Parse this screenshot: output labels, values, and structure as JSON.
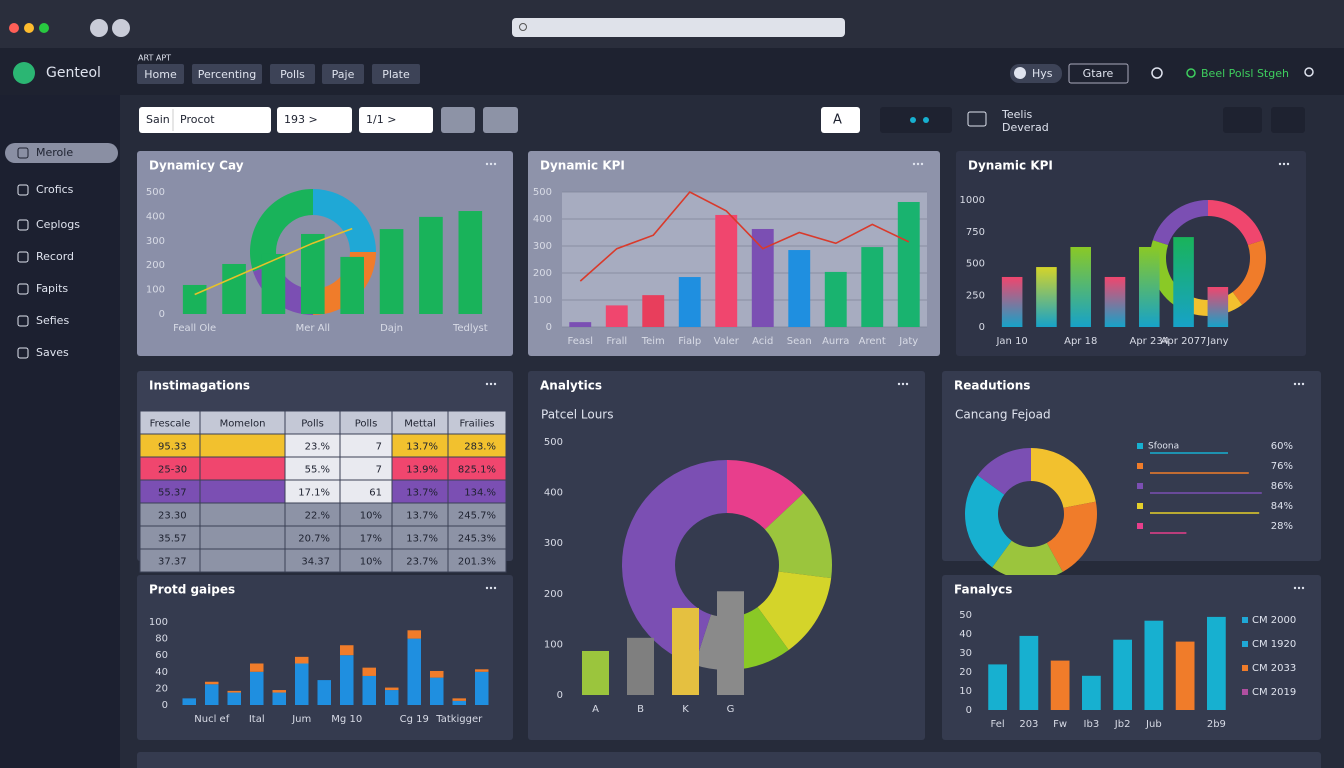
{
  "header": {
    "brand": "Genteol",
    "tag": "ART APT",
    "nav": [
      "Home",
      "Percenting",
      "Polls",
      "Paje",
      "Plate"
    ],
    "toggle": "Hys",
    "button": "Gtare",
    "status": "Beel Polsl Stgeh"
  },
  "sidebar": {
    "items": [
      "Merole",
      "Crofics",
      "Ceplogs",
      "Record",
      "Fapits",
      "Sefies",
      "Saves"
    ],
    "active": 0
  },
  "toolbar": {
    "search_label": "Sain",
    "search_value": "Procot",
    "select1": "193 >",
    "select2": "1/1 >",
    "font_button": "A",
    "details": [
      "Teelis",
      "Deverad"
    ]
  },
  "panels": [
    {
      "title": "Dynamicy Cay",
      "background": "#8a8fa8",
      "chart": {
        "type": "bar",
        "ylim": [
          0,
          500
        ],
        "yticks": [
          0,
          100,
          200,
          300,
          400,
          500
        ],
        "grid": false,
        "categories": [
          "Feall Ole",
          null,
          null,
          "Mer All",
          null,
          "Dajn",
          null,
          "Tedlyst"
        ],
        "series": [
          {
            "color": "#19b35a",
            "values": [
              119,
              205,
              246,
              328,
              234,
              348,
              398,
              422
            ]
          }
        ],
        "line": {
          "color": "#e6c229",
          "values": [
            80,
            150,
            220,
            290,
            350,
            null,
            null,
            null
          ]
        },
        "inset": {
          "values": [
            25,
            25,
            20,
            30
          ],
          "colors": [
            "#1fa8d6",
            "#f07c2a",
            "#7b4fb3",
            "#19b35a"
          ]
        }
      }
    },
    {
      "title": "Dynamic KPI",
      "background": "#8e93aa",
      "chart": {
        "type": "bar",
        "ylim": [
          0,
          500
        ],
        "yticks": [
          0,
          100,
          200,
          300,
          400,
          500
        ],
        "grid": true,
        "plot_background": "#a7acc0",
        "categories": [
          "Feasl",
          "Frall",
          "Teim",
          "Fialp",
          "Valer",
          "Acid",
          "Sean",
          "Aurra",
          "Arent",
          "Jaty"
        ],
        "series": [
          {
            "colors": [
              "#7b4fb3",
              "#f0466e",
              "#e83e5c",
              "#1f8fe0",
              "#f0466e",
              "#7b4fb3",
              "#1f8fe0",
              "#19b36f",
              "#19b36f",
              "#19b36f"
            ],
            "values": [
              18,
              80,
              118,
              185,
              415,
              363,
              285,
              204,
              296,
              463
            ]
          }
        ],
        "line": {
          "color": "#d93a2b",
          "values": [
            170,
            290,
            340,
            500,
            430,
            290,
            350,
            310,
            380,
            315
          ]
        }
      }
    },
    {
      "title": "Dynamic KPI",
      "background": "#2f3447",
      "chart": {
        "type": "bar",
        "ylim": [
          0,
          1000
        ],
        "yticks": [
          0,
          250,
          500,
          750,
          1000
        ],
        "grid": false,
        "gradient_to": "#17a2c8",
        "categories": [
          "Jan 10",
          null,
          "Apr 18",
          null,
          "Apr 234",
          "Apr 2077",
          "Jany"
        ],
        "series": [
          {
            "colors": [
              "#f0466e",
              "#d4d42a",
              "#8ac926",
              "#f0466e",
              "#8ac926",
              "#19b35a",
              "#f0466e"
            ],
            "values": [
              394,
              472,
              630,
              394,
              630,
              708,
              315
            ]
          }
        ],
        "inset": {
          "values": [
            20,
            20,
            20,
            20,
            20
          ],
          "colors": [
            "#f0466e",
            "#f07c2a",
            "#f2c12e",
            "#8ac926",
            "#7b4fb3"
          ]
        }
      }
    },
    {
      "title": "Instimagations",
      "background": "#3a4055",
      "chart": {
        "type": "table",
        "header": [
          "Frescale",
          "Momelon",
          "Polls",
          "Polls",
          "Mettal",
          "Frailies"
        ],
        "rows": [
          [
            "95.33",
            null,
            "23.%",
            "7",
            "13.7%",
            "283.%"
          ],
          [
            "25-30",
            null,
            "55.%",
            "7",
            "13.9%",
            "825.1%"
          ],
          [
            "55.37",
            null,
            "17.1%",
            "61",
            "13.7%",
            "134.%"
          ],
          [
            "23.30",
            null,
            "22.%",
            "10%",
            "13.7%",
            "245.7%"
          ],
          [
            "35.57",
            null,
            "20.7%",
            "17%",
            "13.7%",
            "245.3%"
          ],
          [
            "37.37",
            null,
            "34.37",
            "10%",
            "23.7%",
            "201.3%"
          ]
        ],
        "row_colors": [
          "#f2c12e",
          "#f0466e",
          "#7b4fb3",
          "#8d93a6",
          "#8d93a6",
          "#8d93a6"
        ]
      }
    },
    {
      "title": "Analytics",
      "subtitle": "Patcel Lours",
      "background": "#353b4f",
      "chart": {
        "type": "bar",
        "ylim": [
          0,
          500
        ],
        "yticks": [
          0,
          100,
          200,
          300,
          400,
          500
        ],
        "grid": false,
        "categories": [
          "A",
          "B",
          "K",
          "G"
        ],
        "series": [
          {
            "colors": [
              "#9bc53d",
              "#7f7f7f",
              "#e5c040",
              "#8a8a8a"
            ],
            "values": [
              87,
              113,
              172,
              205
            ]
          }
        ],
        "inset": {
          "values": [
            13,
            14,
            13,
            9,
            6,
            45
          ],
          "colors": [
            "#e83e8c",
            "#9bc53d",
            "#d4d42a",
            "#8ac926",
            "#8a8a8a",
            "#7b4fb3"
          ]
        }
      }
    },
    {
      "title": "Readutions",
      "subtitle": "Cancang Fejoad",
      "background": "#353b4f",
      "chart": {
        "type": "donut",
        "values": [
          22,
          20,
          18,
          25,
          15
        ],
        "colors": [
          "#f2c12e",
          "#f07c2a",
          "#9bc53d",
          "#17b0d0",
          "#7b4fb3"
        ],
        "legend": {
          "names": [
            "Sfoona",
            null,
            null,
            null,
            null
          ],
          "values": [
            60,
            76,
            86,
            84,
            28
          ],
          "value_labels": [
            "60%",
            "76%",
            "86%",
            "84%",
            "28%"
          ],
          "colors": [
            "#17b0d0",
            "#f07c2a",
            "#7b4fb3",
            "#e5d02a",
            "#e83e8c"
          ]
        }
      }
    },
    {
      "title": "Protd gaipes",
      "background": "#353b4f",
      "chart": {
        "type": "bar",
        "stacked": true,
        "ylim": [
          0,
          100
        ],
        "yticks": [
          0,
          20,
          40,
          60,
          80,
          100
        ],
        "grid": false,
        "categories": [
          null,
          "Nucl ef",
          null,
          "Ital",
          null,
          "Jum",
          null,
          "Mg 10",
          null,
          null,
          "Cg 19",
          null,
          "Tatkigger",
          null
        ],
        "series": [
          {
            "color": "#1f8fe0",
            "values": [
              8,
              25,
              15,
              40,
              15,
              50,
              30,
              60,
              35,
              18,
              80,
              33,
              5,
              40
            ]
          },
          {
            "color": "#f07c2a",
            "values": [
              0,
              3,
              2,
              10,
              3,
              8,
              0,
              12,
              10,
              3,
              10,
              8,
              3,
              3
            ]
          }
        ]
      }
    },
    {
      "title": "Fanalycs",
      "background": "#353b4f",
      "chart": {
        "type": "bar",
        "ylim": [
          0,
          50
        ],
        "yticks": [
          0,
          10,
          20,
          30,
          40,
          50
        ],
        "grid": false,
        "categories": [
          "Fel",
          "203",
          "Fw",
          "Ib3",
          "Jb2",
          "Jub",
          null,
          "2b9"
        ],
        "series": [
          {
            "colors": [
              "#17b0d0",
              "#17b0d0",
              "#f07c2a",
              "#17b0d0",
              "#17b0d0",
              "#17b0d0",
              "#f07c2a",
              "#17b0d0"
            ],
            "values": [
              24,
              39,
              26,
              18,
              37,
              47,
              36,
              49
            ]
          }
        ],
        "legend": {
          "names": [
            "CM 2000",
            "CM 1920",
            "CM 2033",
            "CM 2019"
          ],
          "colors": [
            "#1fa8d6",
            "#1fa8d6",
            "#f07c2a",
            "#b04fa0"
          ]
        }
      }
    }
  ]
}
